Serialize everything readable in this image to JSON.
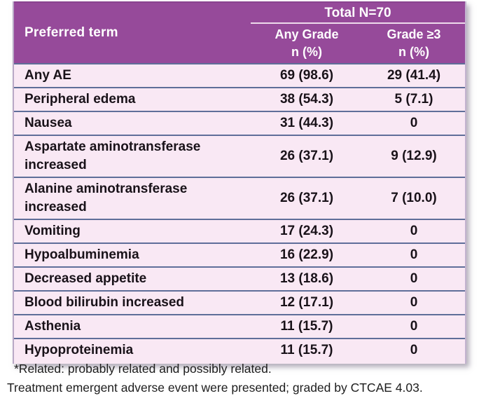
{
  "table": {
    "header": {
      "preferred_term": "Preferred term",
      "total": "Total N=70",
      "col_any_grade": "Any Grade",
      "col_grade3": "Grade ≥3",
      "n_pct_any": "n (%)",
      "n_pct_g3": "n (%)"
    },
    "rows": [
      {
        "term": "Any AE",
        "any_grade": "69 (98.6)",
        "grade3": "29 (41.4)"
      },
      {
        "term": "Peripheral edema",
        "any_grade": "38 (54.3)",
        "grade3": "5 (7.1)"
      },
      {
        "term": "Nausea",
        "any_grade": "31 (44.3)",
        "grade3": "0"
      },
      {
        "term": "Aspartate aminotransferase increased",
        "any_grade": "26 (37.1)",
        "grade3": "9 (12.9)"
      },
      {
        "term": "Alanine aminotransferase increased",
        "any_grade": "26 (37.1)",
        "grade3": "7 (10.0)"
      },
      {
        "term": "Vomiting",
        "any_grade": "17 (24.3)",
        "grade3": "0"
      },
      {
        "term": "Hypoalbuminemia",
        "any_grade": "16 (22.9)",
        "grade3": "0"
      },
      {
        "term": "Decreased appetite",
        "any_grade": "13 (18.6)",
        "grade3": "0"
      },
      {
        "term": "Blood bilirubin increased",
        "any_grade": "12 (17.1)",
        "grade3": "0"
      },
      {
        "term": "Asthenia",
        "any_grade": "11 (15.7)",
        "grade3": "0"
      },
      {
        "term": "Hypoproteinemia",
        "any_grade": "11 (15.7)",
        "grade3": "0"
      }
    ]
  },
  "footnotes": {
    "line1": "*Related: probably related and possibly related.",
    "line2": "Treatment emergent adverse event were presented; graded by CTCAE 4.03."
  },
  "colors": {
    "header_purple": "#964a9a",
    "row_pink": "#f9e8f4",
    "separator_blue": "#5f6e99",
    "header_divider": "#eedaec"
  },
  "chart_data": {
    "type": "table",
    "title": "Total N=70",
    "columns": [
      "Preferred term",
      "Any Grade n (%)",
      "Grade ≥3 n (%)"
    ],
    "rows": [
      [
        "Any AE",
        "69 (98.6)",
        "29 (41.4)"
      ],
      [
        "Peripheral edema",
        "38 (54.3)",
        "5 (7.1)"
      ],
      [
        "Nausea",
        "31 (44.3)",
        "0"
      ],
      [
        "Aspartate aminotransferase increased",
        "26 (37.1)",
        "9 (12.9)"
      ],
      [
        "Alanine aminotransferase increased",
        "26 (37.1)",
        "7 (10.0)"
      ],
      [
        "Vomiting",
        "17 (24.3)",
        "0"
      ],
      [
        "Hypoalbuminemia",
        "16 (22.9)",
        "0"
      ],
      [
        "Decreased appetite",
        "13 (18.6)",
        "0"
      ],
      [
        "Blood bilirubin increased",
        "12 (17.1)",
        "0"
      ],
      [
        "Asthenia",
        "11 (15.7)",
        "0"
      ],
      [
        "Hypoproteinemia",
        "11 (15.7)",
        "0"
      ]
    ]
  }
}
